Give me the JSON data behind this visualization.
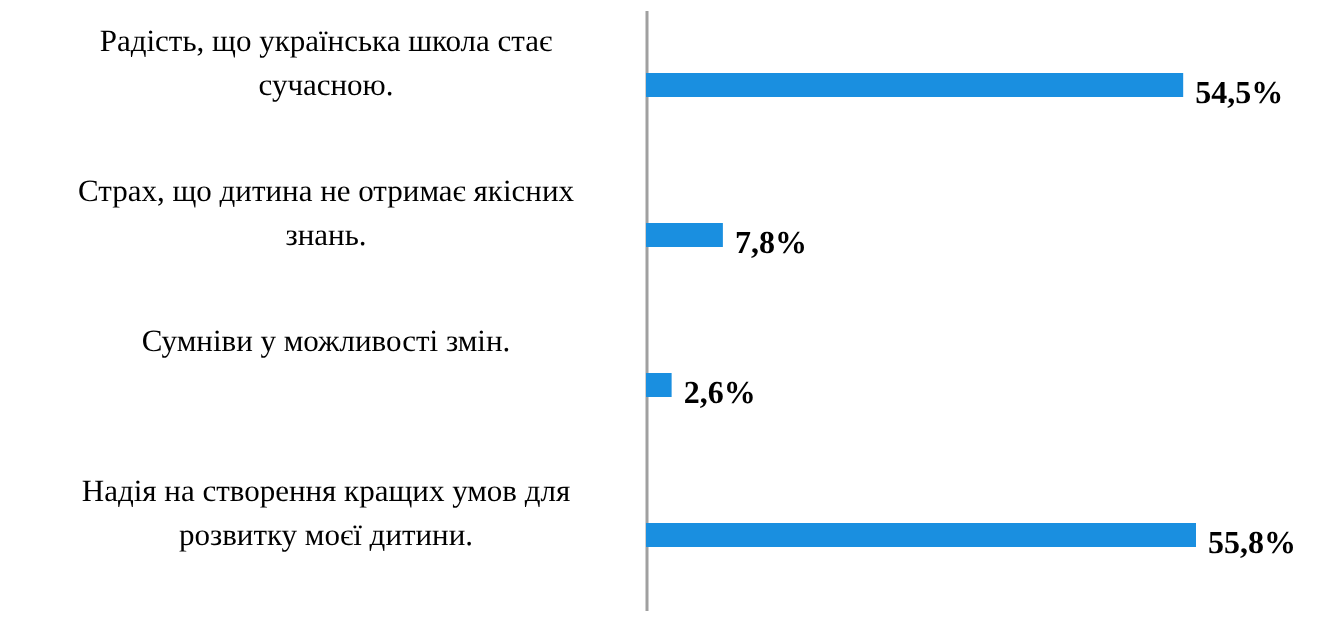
{
  "chart_data": {
    "type": "bar",
    "orientation": "horizontal",
    "categories": [
      "Радість, що українська школа стає сучасною.",
      "Страх, що дитина не отримає якісних знань.",
      "Сумніви у можливості змін.",
      "Надія на створення кращих умов для розвитку моєї дитини."
    ],
    "values": [
      54.5,
      7.8,
      2.6,
      55.8
    ],
    "value_labels": [
      "54,5%",
      "7,8%",
      "2,6%",
      "55,8%"
    ],
    "color": "#1a8fe0"
  }
}
